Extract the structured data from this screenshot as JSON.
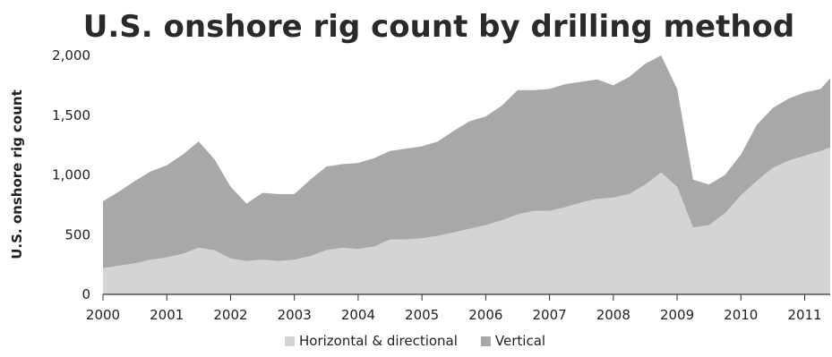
{
  "chart_data": {
    "type": "area",
    "title": "U.S. onshore rig count by drilling method",
    "xlabel": "",
    "ylabel": "U.S. onshore rig count",
    "ylim": [
      0,
      2000
    ],
    "yticks": [
      0,
      500,
      1000,
      1500,
      2000
    ],
    "ytick_labels": [
      "0",
      "500",
      "1,000",
      "1,500",
      "2,000"
    ],
    "xlim": [
      2000,
      2011.4
    ],
    "xticks": [
      2000,
      2001,
      2002,
      2003,
      2004,
      2005,
      2006,
      2007,
      2008,
      2009,
      2010,
      2011
    ],
    "xtick_labels": [
      "2000",
      "2001",
      "2002",
      "2003",
      "2004",
      "2005",
      "2006",
      "2007",
      "2008",
      "2009",
      "2010",
      "2011"
    ],
    "stacked": true,
    "grid": false,
    "legend_position": "bottom",
    "x": [
      2000.0,
      2000.25,
      2000.5,
      2000.75,
      2001.0,
      2001.25,
      2001.5,
      2001.75,
      2002.0,
      2002.25,
      2002.5,
      2002.75,
      2003.0,
      2003.25,
      2003.5,
      2003.75,
      2004.0,
      2004.25,
      2004.5,
      2004.75,
      2005.0,
      2005.25,
      2005.5,
      2005.75,
      2006.0,
      2006.25,
      2006.5,
      2006.75,
      2007.0,
      2007.25,
      2007.5,
      2007.75,
      2008.0,
      2008.25,
      2008.5,
      2008.75,
      2009.0,
      2009.25,
      2009.5,
      2009.75,
      2010.0,
      2010.25,
      2010.5,
      2010.75,
      2011.0,
      2011.25,
      2011.4
    ],
    "series": [
      {
        "name": "Horizontal & directional",
        "color": "#d4d4d4",
        "values": [
          220,
          240,
          260,
          290,
          310,
          340,
          390,
          370,
          300,
          280,
          290,
          280,
          290,
          320,
          370,
          390,
          380,
          400,
          460,
          460,
          470,
          490,
          520,
          550,
          580,
          620,
          670,
          700,
          700,
          730,
          770,
          800,
          810,
          840,
          920,
          1020,
          900,
          560,
          580,
          680,
          830,
          950,
          1060,
          1120,
          1160,
          1200,
          1230
        ]
      },
      {
        "name": "Vertical",
        "color": "#a8a8a8",
        "values": [
          560,
          620,
          690,
          740,
          770,
          830,
          890,
          760,
          600,
          480,
          560,
          560,
          550,
          640,
          700,
          700,
          720,
          740,
          740,
          760,
          770,
          790,
          850,
          900,
          910,
          960,
          1040,
          1010,
          1020,
          1030,
          1010,
          1000,
          940,
          980,
          1010,
          980,
          820,
          400,
          340,
          320,
          340,
          470,
          500,
          520,
          530,
          520,
          580
        ]
      }
    ]
  }
}
